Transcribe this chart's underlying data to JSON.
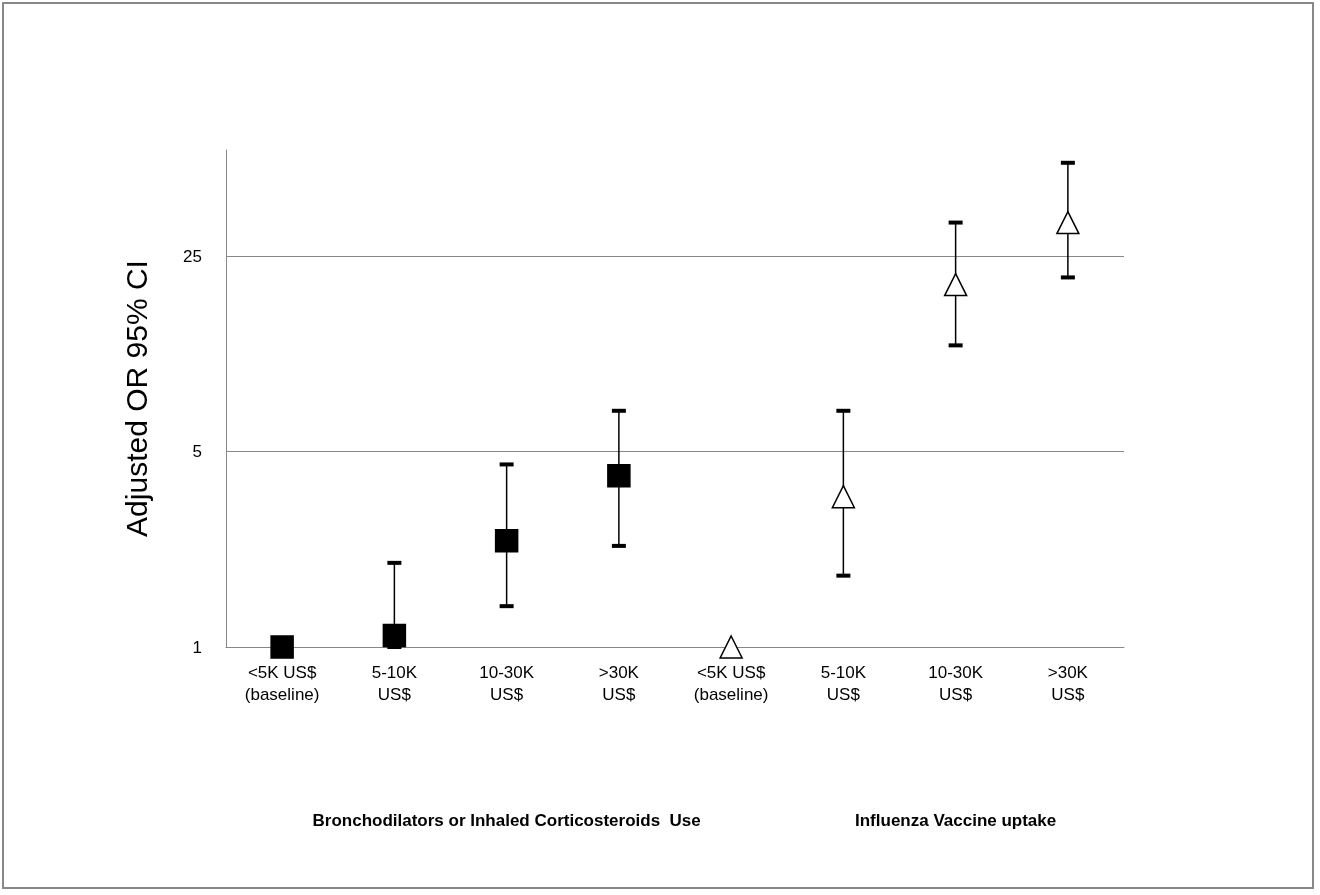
{
  "chart_data": {
    "type": "scatter",
    "ylabel": "Adjusted OR 95% CI",
    "categories": [
      "<5K US$\n(baseline)",
      "5-10K\nUS$",
      "10-30K\nUS$",
      ">30K\nUS$",
      "<5K US$\n(baseline)",
      "5-10K\nUS$",
      "10-30K\nUS$",
      ">30K\nUS$"
    ],
    "series": [
      {
        "color": "#000000",
        "marker": "square",
        "values": [
          1,
          1.1,
          2.4,
          4.1,
          null,
          null,
          null,
          null
        ],
        "errors": [
          null,
          [
            1,
            2.0
          ],
          [
            1.4,
            4.5
          ],
          [
            2.3,
            7.0
          ],
          null,
          null,
          null,
          null
        ]
      },
      {
        "color": "#000000",
        "marker": "triangle",
        "values": [
          null,
          null,
          null,
          null,
          1,
          3.45,
          19.8,
          33
        ],
        "errors": [
          null,
          null,
          null,
          null,
          null,
          [
            1.8,
            7.0
          ],
          [
            12,
            33
          ],
          [
            21,
            54
          ]
        ]
      }
    ],
    "log": "y",
    "ylim": [
      1,
      60
    ],
    "yticks": [
      1,
      5,
      25
    ],
    "grid": "y",
    "annotations": [
      "Bronchodilators or Inhaled Corticosteroids  Use",
      "Influenza Vaccine uptake"
    ]
  }
}
